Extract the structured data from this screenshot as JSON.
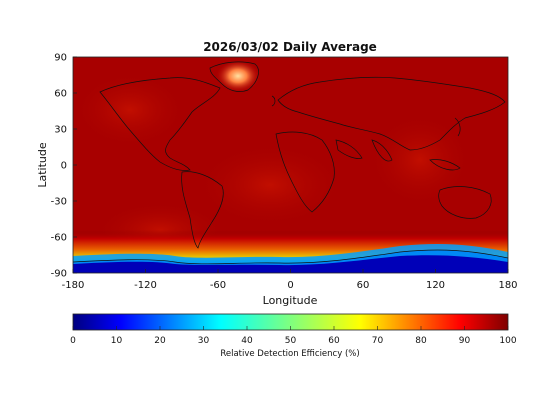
{
  "chart_data": {
    "type": "heatmap",
    "title": "2026/03/02 Daily Average",
    "xlabel": "Longitude",
    "ylabel": "Latitude",
    "xlim": [
      -180,
      180
    ],
    "ylim": [
      -90,
      90
    ],
    "xticks": [
      "-180",
      "-120",
      "-60",
      "0",
      "60",
      "120",
      "180"
    ],
    "yticks": [
      "90",
      "60",
      "30",
      "0",
      "-30",
      "-60",
      "-90"
    ],
    "colorbar": {
      "label": "Relative Detection Efficiency (%)",
      "range": [
        0,
        100
      ],
      "ticks": [
        "0",
        "10",
        "20",
        "30",
        "40",
        "50",
        "60",
        "70",
        "80",
        "90",
        "100"
      ],
      "colormap": "jet"
    },
    "field_summary": {
      "dominant_value": 100,
      "high_latitude_south_low_values": true,
      "greenland_reduced": true
    }
  }
}
